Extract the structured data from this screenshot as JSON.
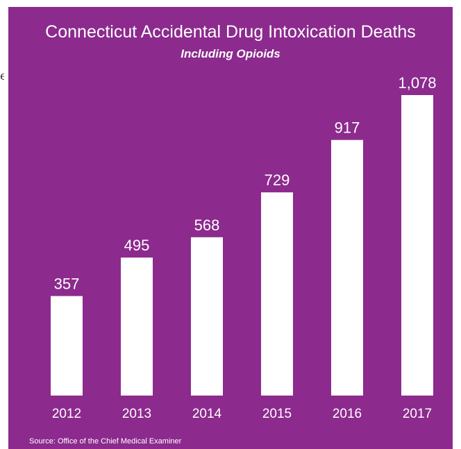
{
  "stray_text": "e",
  "chart_data": {
    "type": "bar",
    "title": "Connecticut Accidental Drug Intoxication Deaths",
    "subtitle": "Including Opioids",
    "categories": [
      "2012",
      "2013",
      "2014",
      "2015",
      "2016",
      "2017"
    ],
    "values": [
      357,
      495,
      568,
      729,
      917,
      1078
    ],
    "value_labels": [
      "357",
      "495",
      "568",
      "729",
      "917",
      "1,078"
    ],
    "xlabel": "",
    "ylabel": "",
    "ylim": [
      0,
      1100
    ],
    "grid": false,
    "source": "Source: Office of the Chief Medical Examiner",
    "colors": {
      "background": "#8c2a8e",
      "bar": "#ffffff",
      "text": "#ffffff"
    }
  }
}
